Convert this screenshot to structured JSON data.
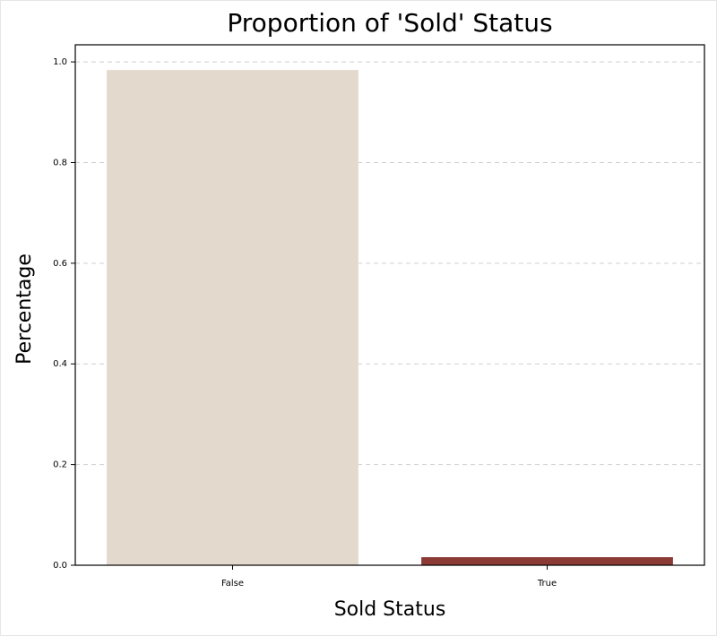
{
  "chart_data": {
    "type": "bar",
    "title": "Proportion of 'Sold' Status",
    "x_label": "Sold Status",
    "y_label": "Percentage",
    "categories": [
      "False",
      "True"
    ],
    "values": [
      0.984,
      0.016
    ],
    "colors": [
      "#e3dacd",
      "#8b3a36"
    ],
    "ylim": [
      0,
      1.034
    ],
    "yticks": [
      {
        "value": 0,
        "label": "0.0"
      },
      0.2,
      0.4,
      0.6,
      0.8,
      {
        "value": 1,
        "label": "1.0"
      }
    ],
    "grid": true
  }
}
